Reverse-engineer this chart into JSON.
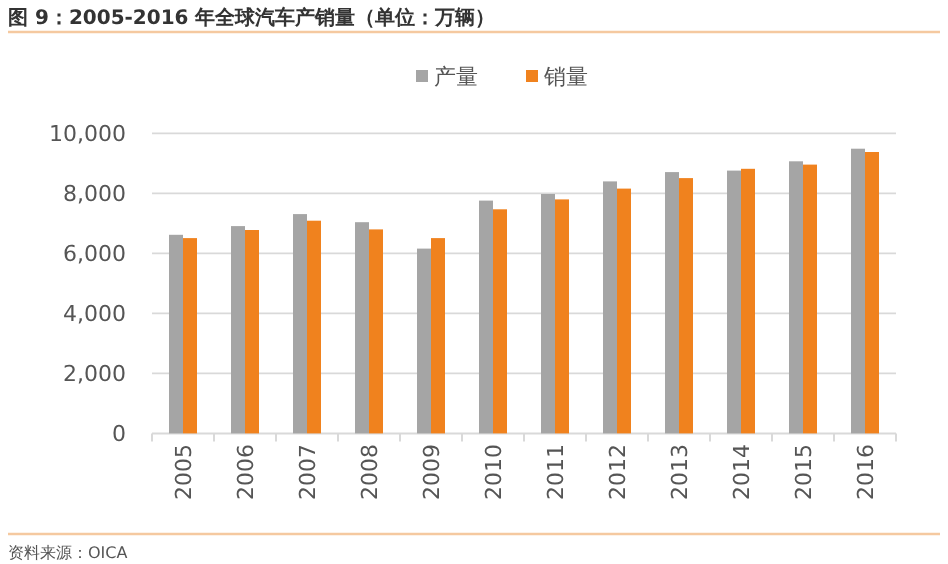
{
  "chart_data": {
    "type": "bar",
    "title": "图 9：2005-2016 年全球汽车产销量（单位：万辆）",
    "categories": [
      "2005",
      "2006",
      "2007",
      "2008",
      "2009",
      "2010",
      "2011",
      "2012",
      "2013",
      "2014",
      "2015",
      "2016"
    ],
    "series": [
      {
        "name": "产量",
        "color": "#a5a5a5",
        "values": [
          6620,
          6910,
          7310,
          7040,
          6160,
          7760,
          7980,
          8400,
          8710,
          8760,
          9070,
          9490
        ]
      },
      {
        "name": "销量",
        "color": "#f0821e",
        "values": [
          6510,
          6780,
          7090,
          6800,
          6510,
          7470,
          7800,
          8160,
          8510,
          8820,
          8960,
          9380
        ]
      }
    ],
    "ylim": [
      0,
      10000
    ],
    "yticks": [
      {
        "value": 0,
        "label": "0"
      },
      {
        "value": 2000,
        "label": "2,000"
      },
      {
        "value": 4000,
        "label": "4,000"
      },
      {
        "value": 6000,
        "label": "6,000"
      },
      {
        "value": 8000,
        "label": "8,000"
      },
      {
        "value": 10000,
        "label": "10,000"
      }
    ],
    "grid": "y",
    "legend": "top",
    "annotations": [
      "资料来源：OICA"
    ]
  }
}
